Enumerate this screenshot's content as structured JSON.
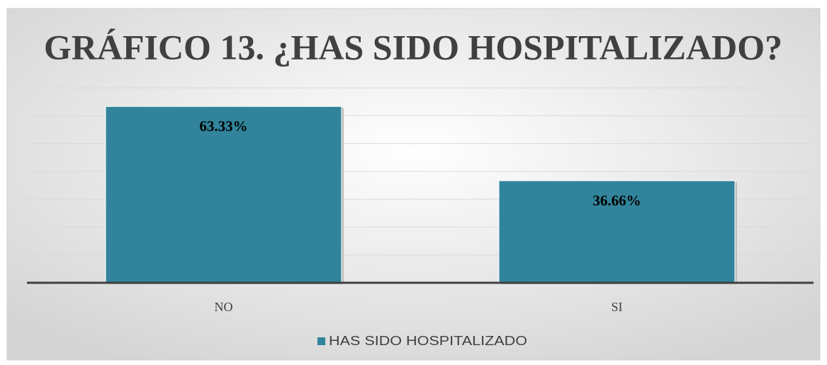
{
  "chart_data": {
    "type": "bar",
    "title": "GRÁFICO 13. ¿HAS SIDO HOSPITALIZADO?",
    "categories": [
      "NO",
      "SI"
    ],
    "series": [
      {
        "name": "HAS SIDO HOSPITALIZADO",
        "color": "#31849b",
        "values": [
          63.33,
          36.66
        ],
        "value_labels": [
          "63.33%",
          "36.66%"
        ]
      }
    ],
    "ylim": [
      0,
      70
    ],
    "yticks": [
      0,
      10,
      20,
      30,
      40,
      50,
      60,
      70
    ],
    "grid": true,
    "legend": "bottom"
  }
}
